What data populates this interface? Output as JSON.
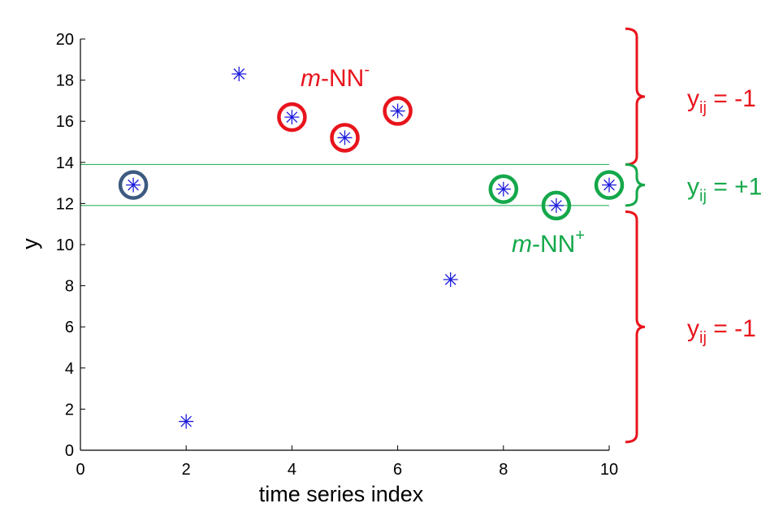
{
  "chart_data": {
    "type": "scatter",
    "xlabel": "time series index",
    "ylabel": "y",
    "xlim": [
      0,
      10
    ],
    "ylim": [
      0,
      20
    ],
    "xticks": [
      0,
      2,
      4,
      6,
      8,
      10
    ],
    "yticks": [
      0,
      2,
      4,
      6,
      8,
      10,
      12,
      14,
      16,
      18,
      20
    ],
    "grid": false,
    "points": [
      {
        "x": 1,
        "y": 12.9,
        "ring": "query"
      },
      {
        "x": 2,
        "y": 1.4,
        "ring": "none"
      },
      {
        "x": 3,
        "y": 18.3,
        "ring": "none"
      },
      {
        "x": 4,
        "y": 16.2,
        "ring": "negative"
      },
      {
        "x": 5,
        "y": 15.2,
        "ring": "negative"
      },
      {
        "x": 6,
        "y": 16.5,
        "ring": "negative"
      },
      {
        "x": 7,
        "y": 8.3,
        "ring": "none"
      },
      {
        "x": 8,
        "y": 12.7,
        "ring": "positive"
      },
      {
        "x": 9,
        "y": 11.9,
        "ring": "positive"
      },
      {
        "x": 10,
        "y": 12.9,
        "ring": "positive"
      }
    ],
    "band": {
      "lower": 11.9,
      "upper": 13.9
    },
    "braces": [
      {
        "from": 13.9,
        "to": 20.5,
        "label_main": "y",
        "label_sub": "ij",
        "label_value": " = -1",
        "color": "#e8141c"
      },
      {
        "from": 11.9,
        "to": 13.9,
        "label_main": "y",
        "label_sub": "ij",
        "label_value": " = +1",
        "color": "#14a84a"
      },
      {
        "from": 0.4,
        "to": 11.6,
        "label_main": "y",
        "label_sub": "ij",
        "label_value": " = -1",
        "color": "#e8141c"
      }
    ],
    "annotations": {
      "neg": {
        "italic": "m",
        "text": "-NN",
        "sup": "-",
        "color": "#e8141c"
      },
      "pos": {
        "italic": "m",
        "text": "-NN",
        "sup": "+",
        "color": "#14a84a"
      }
    },
    "colors": {
      "marker": "#1a1adc",
      "query_ring": "#3d5a80",
      "negative_ring": "#e8141c",
      "positive_ring": "#14a84a",
      "band_line": "#14a84a"
    }
  }
}
